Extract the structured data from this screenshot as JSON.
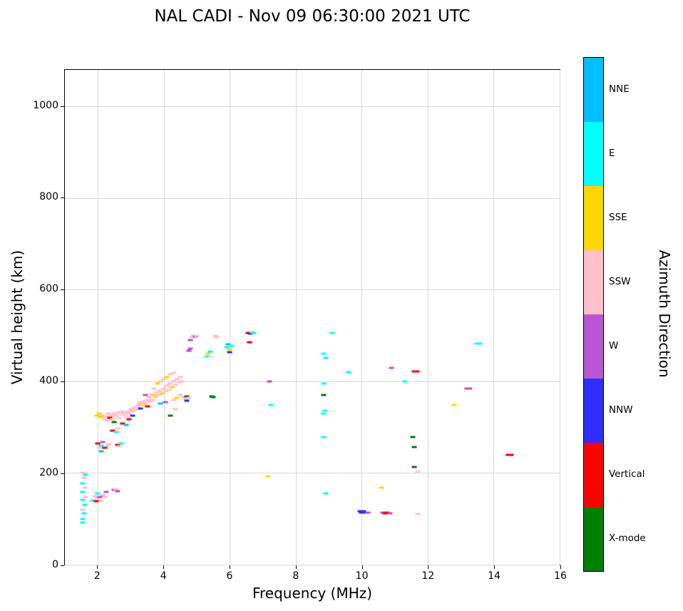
{
  "chart_data": {
    "type": "scatter",
    "title": "NAL CADI - Nov 09 06:30:00 2021 UTC",
    "xlabel": "Frequency (MHz)",
    "ylabel": "Virtual height (km)",
    "xlim": [
      1,
      16
    ],
    "ylim": [
      0,
      1080
    ],
    "xticks": [
      2,
      4,
      6,
      8,
      10,
      12,
      14,
      16
    ],
    "yticks": [
      0,
      200,
      400,
      600,
      800,
      1000
    ],
    "grid": true,
    "legend_position": "right-colorbar",
    "colorbar": {
      "label": "Azimuth Direction",
      "entries": [
        {
          "label": "NNE",
          "color": "#00bfff"
        },
        {
          "label": "E",
          "color": "#00ffff"
        },
        {
          "label": "SSE",
          "color": "#ffd700"
        },
        {
          "label": "SSW",
          "color": "#ffc0cb"
        },
        {
          "label": "W",
          "color": "#ba55d3"
        },
        {
          "label": "NNW",
          "color": "#2e2eff"
        },
        {
          "label": "Vertical",
          "color": "#ff0000"
        },
        {
          "label": "X-mode",
          "color": "#008000"
        }
      ]
    },
    "points": [
      [
        1.55,
        92,
        "E"
      ],
      [
        1.55,
        100,
        "E"
      ],
      [
        1.58,
        112,
        "E"
      ],
      [
        1.55,
        120,
        "SSW"
      ],
      [
        1.6,
        130,
        "E"
      ],
      [
        1.55,
        142,
        "E"
      ],
      [
        1.62,
        148,
        "SSW"
      ],
      [
        1.55,
        158,
        "E"
      ],
      [
        1.6,
        168,
        "SSW"
      ],
      [
        1.55,
        178,
        "E"
      ],
      [
        1.58,
        190,
        "SSW"
      ],
      [
        1.62,
        196,
        "E"
      ],
      [
        1.55,
        200,
        "SSW"
      ],
      [
        1.85,
        140,
        "E"
      ],
      [
        1.9,
        150,
        "SSW"
      ],
      [
        1.95,
        138,
        "Vertical"
      ],
      [
        2.0,
        145,
        "SSW"
      ],
      [
        2.0,
        155,
        "E"
      ],
      [
        2.05,
        148,
        "W"
      ],
      [
        2.1,
        140,
        "SSW"
      ],
      [
        2.15,
        152,
        "SSW"
      ],
      [
        2.2,
        148,
        "SSW"
      ],
      [
        2.25,
        158,
        "W"
      ],
      [
        2.5,
        163,
        "W"
      ],
      [
        2.55,
        165,
        "SSW"
      ],
      [
        2.6,
        160,
        "W"
      ],
      [
        2.0,
        265,
        "Vertical"
      ],
      [
        2.05,
        255,
        "SSW"
      ],
      [
        2.1,
        260,
        "E"
      ],
      [
        2.1,
        248,
        "NNE"
      ],
      [
        2.15,
        268,
        "W"
      ],
      [
        2.2,
        255,
        "Vertical"
      ],
      [
        2.3,
        260,
        "SSW"
      ],
      [
        2.35,
        263,
        "SSW"
      ],
      [
        2.6,
        262,
        "Vertical"
      ],
      [
        2.65,
        258,
        "SSW"
      ],
      [
        2.7,
        265,
        "E"
      ],
      [
        2.45,
        293,
        "Vertical"
      ],
      [
        2.55,
        290,
        "E"
      ],
      [
        2.6,
        298,
        "SSW"
      ],
      [
        2.75,
        308,
        "Vertical"
      ],
      [
        2.85,
        305,
        "NNE"
      ],
      [
        1.98,
        325,
        "SSE"
      ],
      [
        2.03,
        330,
        "SSE"
      ],
      [
        2.08,
        322,
        "SSE"
      ],
      [
        2.13,
        327,
        "SSW"
      ],
      [
        2.18,
        324,
        "SSE"
      ],
      [
        2.2,
        318,
        "SSW"
      ],
      [
        2.25,
        323,
        "SSW"
      ],
      [
        2.3,
        315,
        "SSW"
      ],
      [
        2.32,
        330,
        "SSW"
      ],
      [
        2.37,
        320,
        "Vertical"
      ],
      [
        2.4,
        326,
        "SSW"
      ],
      [
        2.45,
        318,
        "SSW"
      ],
      [
        2.5,
        330,
        "SSW"
      ],
      [
        2.5,
        312,
        "X-mode"
      ],
      [
        2.55,
        325,
        "SSW"
      ],
      [
        2.6,
        332,
        "SSW"
      ],
      [
        2.65,
        321,
        "SSW"
      ],
      [
        2.7,
        334,
        "SSW"
      ],
      [
        2.75,
        328,
        "SSW"
      ],
      [
        2.8,
        331,
        "SSW"
      ],
      [
        2.85,
        323,
        "SSW"
      ],
      [
        2.9,
        335,
        "SSW"
      ],
      [
        2.95,
        330,
        "SSW"
      ],
      [
        3.0,
        339,
        "SSW"
      ],
      [
        3.05,
        334,
        "SSW"
      ],
      [
        3.1,
        342,
        "SSW"
      ],
      [
        3.15,
        337,
        "SSW"
      ],
      [
        3.05,
        325,
        "NNW"
      ],
      [
        2.95,
        318,
        "Vertical"
      ],
      [
        3.2,
        345,
        "SSW"
      ],
      [
        3.25,
        350,
        "SSW"
      ],
      [
        3.3,
        355,
        "SSW"
      ],
      [
        3.3,
        341,
        "NNW"
      ],
      [
        3.35,
        348,
        "SSE"
      ],
      [
        3.4,
        357,
        "SSW"
      ],
      [
        3.45,
        352,
        "SSW"
      ],
      [
        3.45,
        370,
        "W"
      ],
      [
        3.5,
        360,
        "SSW"
      ],
      [
        3.5,
        345,
        "Vertical"
      ],
      [
        3.55,
        365,
        "SSW"
      ],
      [
        3.6,
        357,
        "SSW"
      ],
      [
        3.62,
        372,
        "SSW"
      ],
      [
        3.65,
        360,
        "SSW"
      ],
      [
        3.7,
        370,
        "SSE"
      ],
      [
        3.7,
        385,
        "SSW"
      ],
      [
        3.75,
        365,
        "SSW"
      ],
      [
        3.78,
        376,
        "SSW"
      ],
      [
        3.8,
        395,
        "SSE"
      ],
      [
        3.85,
        370,
        "SSW"
      ],
      [
        3.88,
        380,
        "SSW"
      ],
      [
        3.9,
        400,
        "SSW"
      ],
      [
        3.95,
        374,
        "SSE"
      ],
      [
        4.0,
        385,
        "SSW"
      ],
      [
        4.0,
        405,
        "SSW"
      ],
      [
        4.05,
        378,
        "SSW"
      ],
      [
        4.08,
        390,
        "SSW"
      ],
      [
        4.1,
        410,
        "SSE"
      ],
      [
        4.15,
        382,
        "SSW"
      ],
      [
        4.18,
        395,
        "SSW"
      ],
      [
        4.2,
        415,
        "SSW"
      ],
      [
        4.25,
        388,
        "SSE"
      ],
      [
        4.28,
        400,
        "SSW"
      ],
      [
        4.3,
        418,
        "SSW"
      ],
      [
        4.35,
        392,
        "SSW"
      ],
      [
        4.4,
        405,
        "SSW"
      ],
      [
        4.45,
        398,
        "SSW"
      ],
      [
        4.5,
        410,
        "SSW"
      ],
      [
        4.55,
        400,
        "SSW"
      ],
      [
        4.3,
        360,
        "SSW"
      ],
      [
        4.4,
        364,
        "SSE"
      ],
      [
        4.5,
        370,
        "SSW"
      ],
      [
        4.6,
        365,
        "SSW"
      ],
      [
        4.2,
        325,
        "X-mode"
      ],
      [
        4.35,
        340,
        "SSW"
      ],
      [
        3.9,
        352,
        "NNE"
      ],
      [
        4.05,
        355,
        "W"
      ],
      [
        4.65,
        362,
        "SSW"
      ],
      [
        4.7,
        368,
        "X-mode"
      ],
      [
        4.75,
        364,
        "SSW"
      ],
      [
        4.7,
        358,
        "NNW"
      ],
      [
        4.75,
        467,
        "W"
      ],
      [
        4.8,
        490,
        "W"
      ],
      [
        4.85,
        497,
        "SSW"
      ],
      [
        4.9,
        500,
        "SSW"
      ],
      [
        4.95,
        498,
        "W"
      ],
      [
        5.0,
        500,
        "SSW"
      ],
      [
        4.8,
        472,
        "W"
      ],
      [
        5.3,
        455,
        "E"
      ],
      [
        5.35,
        461,
        "SSE"
      ],
      [
        5.4,
        466,
        "E"
      ],
      [
        5.45,
        368,
        "X-mode"
      ],
      [
        5.5,
        366,
        "X-mode"
      ],
      [
        5.55,
        500,
        "SSW"
      ],
      [
        5.6,
        497,
        "SSW"
      ],
      [
        5.9,
        474,
        "E"
      ],
      [
        5.95,
        481,
        "NNE"
      ],
      [
        6.0,
        470,
        "SSE"
      ],
      [
        6.05,
        477,
        "E"
      ],
      [
        6.0,
        464,
        "NNW"
      ],
      [
        6.55,
        505,
        "Vertical"
      ],
      [
        6.62,
        504,
        "NNW"
      ],
      [
        6.68,
        507,
        "SSE"
      ],
      [
        6.72,
        505,
        "E"
      ],
      [
        6.6,
        486,
        "Vertical"
      ],
      [
        7.2,
        400,
        "W"
      ],
      [
        7.25,
        349,
        "E"
      ],
      [
        7.15,
        193,
        "SSE"
      ],
      [
        9.1,
        505,
        "E"
      ],
      [
        8.85,
        460,
        "E"
      ],
      [
        8.9,
        452,
        "E"
      ],
      [
        8.85,
        395,
        "E"
      ],
      [
        8.85,
        370,
        "X-mode"
      ],
      [
        8.88,
        336,
        "E"
      ],
      [
        8.85,
        330,
        "E"
      ],
      [
        8.85,
        278,
        "E"
      ],
      [
        8.9,
        155,
        "E"
      ],
      [
        9.6,
        420,
        "E"
      ],
      [
        9.95,
        116,
        "NNW"
      ],
      [
        10.0,
        114,
        "NNW"
      ],
      [
        10.05,
        116,
        "NNW"
      ],
      [
        10.1,
        114,
        "NNW"
      ],
      [
        10.18,
        113,
        "W"
      ],
      [
        10.6,
        168,
        "SSE"
      ],
      [
        10.65,
        113,
        "W"
      ],
      [
        10.7,
        112,
        "Vertical"
      ],
      [
        10.78,
        113,
        "Vertical"
      ],
      [
        10.85,
        112,
        "W"
      ],
      [
        10.9,
        430,
        "W"
      ],
      [
        11.3,
        400,
        "E"
      ],
      [
        11.6,
        422,
        "Vertical"
      ],
      [
        11.68,
        422,
        "Vertical"
      ],
      [
        11.55,
        278,
        "X-mode"
      ],
      [
        11.6,
        257,
        "X-mode"
      ],
      [
        11.6,
        213,
        "X-mode"
      ],
      [
        11.7,
        203,
        "SSW"
      ],
      [
        11.7,
        110,
        "SSW"
      ],
      [
        12.8,
        348,
        "SSE"
      ],
      [
        13.2,
        385,
        "W"
      ],
      [
        13.27,
        385,
        "W"
      ],
      [
        13.5,
        483,
        "E"
      ],
      [
        13.57,
        483,
        "E"
      ],
      [
        14.45,
        240,
        "Vertical"
      ],
      [
        14.52,
        240,
        "Vertical"
      ]
    ]
  }
}
